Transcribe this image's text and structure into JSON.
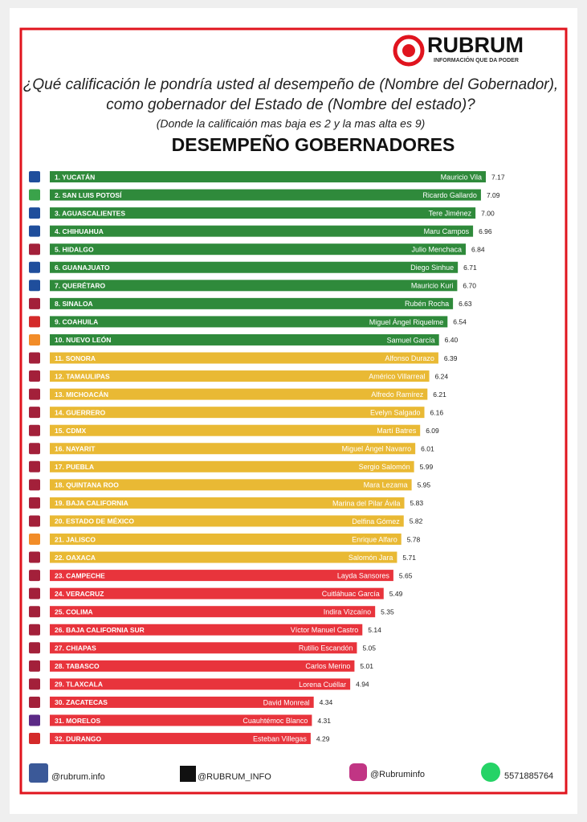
{
  "header": {
    "brand": "RUBRUM",
    "tagline": "INFORMACIÓN QUE DA PODER",
    "question_line1": "¿Qué calificación le pondría usted al desempeño de (Nombre del Gobernador),",
    "question_line2": "como gobernador del Estado de (Nombre del estado)?",
    "note": "(Donde la calificaión mas baja es 2 y la mas alta es 9)"
  },
  "chart_data": {
    "type": "bar",
    "orientation": "horizontal",
    "title": "DESEMPEÑO GOBERNADORES",
    "categories": [
      "1. YUCATÁN",
      "2. SAN LUIS POTOSÍ",
      "3. AGUASCALIENTES",
      "4. CHIHUAHUA",
      "5. HIDALGO",
      "6. GUANAJUATO",
      "7. QUERÉTARO",
      "8. SINALOA",
      "9. COAHUILA",
      "10. NUEVO LEÓN",
      "11. SONORA",
      "12. TAMAULIPAS",
      "13. MICHOACÁN",
      "14. GUERRERO",
      "15. CDMX",
      "16. NAYARIT",
      "17. PUEBLA",
      "18. QUINTANA ROO",
      "19. BAJA CALIFORNIA",
      "20. ESTADO DE MÉXICO",
      "21. JALISCO",
      "22. OAXACA",
      "23. CAMPECHE",
      "24. VERACRUZ",
      "25. COLIMA",
      "26. BAJA CALIFORNIA SUR",
      "27. CHIAPAS",
      "28. TABASCO",
      "29. TLAXCALA",
      "30. ZACATECAS",
      "31. MORELOS",
      "32. DURANGO"
    ],
    "governors": [
      "Mauricio Vila",
      "Ricardo Gallardo",
      "Tere Jiménez",
      "Maru Campos",
      "Julio Menchaca",
      "Diego Sinhue",
      "Mauricio Kuri",
      "Rubén Rocha",
      "Miguel Ángel Riquelme",
      "Samuel García",
      "Alfonso Durazo",
      "Américo Villarreal",
      "Alfredo Ramírez",
      "Evelyn Salgado",
      "Martí Batres",
      "Miguel Ángel Navarro",
      "Sergio Salomón",
      "Mara Lezama",
      "Marina del Pilar Ávila",
      "Delfina Gómez",
      "Enrique Alfaro",
      "Salomón Jara",
      "Layda Sansores",
      "Cuitláhuac García",
      "Indira Vizcaíno",
      "Víctor Manuel Castro",
      "Rutilio Escandón",
      "Carlos Merino",
      "Lorena Cuéllar",
      "David Monreal",
      "Cuauhtémoc Blanco",
      "Esteban Villegas"
    ],
    "values": [
      7.17,
      7.09,
      7.0,
      6.96,
      6.84,
      6.71,
      6.7,
      6.63,
      6.54,
      6.4,
      6.39,
      6.24,
      6.21,
      6.16,
      6.09,
      6.01,
      5.99,
      5.95,
      5.83,
      5.82,
      5.78,
      5.71,
      5.65,
      5.49,
      5.35,
      5.14,
      5.05,
      5.01,
      4.94,
      4.34,
      4.31,
      4.29
    ],
    "value_labels": [
      "7.17",
      "7.09",
      "7.00",
      "6.96",
      "6.84",
      "6.71",
      "6.70",
      "6.63",
      "6.54",
      "6.40",
      "6.39",
      "6.24",
      "6.21",
      "6.16",
      "6.09",
      "6.01",
      "5.99",
      "5.95",
      "5.83",
      "5.82",
      "5.78",
      "5.71",
      "5.65",
      "5.49",
      "5.35",
      "5.14",
      "5.05",
      "5.01",
      "4.94",
      "4.34",
      "4.31",
      "4.29"
    ],
    "colors": [
      "#2f8a3b",
      "#2f8a3b",
      "#2f8a3b",
      "#2f8a3b",
      "#2f8a3b",
      "#2f8a3b",
      "#2f8a3b",
      "#2f8a3b",
      "#2f8a3b",
      "#2f8a3b",
      "#e9b934",
      "#e9b934",
      "#e9b934",
      "#e9b934",
      "#e9b934",
      "#e9b934",
      "#e9b934",
      "#e9b934",
      "#e9b934",
      "#e9b934",
      "#e9b934",
      "#e9b934",
      "#e8343c",
      "#e8343c",
      "#e8343c",
      "#e8343c",
      "#e8343c",
      "#e8343c",
      "#e8343c",
      "#e8343c",
      "#e8343c",
      "#e8343c"
    ],
    "icon_colors": [
      "#1f4e9c",
      "#3aa34a",
      "#1f4e9c",
      "#1f4e9c",
      "#a3203a",
      "#1f4e9c",
      "#1f4e9c",
      "#a3203a",
      "#d42a2a",
      "#f28c28",
      "#a3203a",
      "#a3203a",
      "#a3203a",
      "#a3203a",
      "#a3203a",
      "#a3203a",
      "#a3203a",
      "#a3203a",
      "#a3203a",
      "#a3203a",
      "#f28c28",
      "#a3203a",
      "#a3203a",
      "#a3203a",
      "#a3203a",
      "#a3203a",
      "#a3203a",
      "#a3203a",
      "#a3203a",
      "#a3203a",
      "#5b2a86",
      "#d42a2a"
    ]
  },
  "footer": {
    "facebook": "@rubrum.info",
    "x": "@RUBRUM_INFO",
    "instagram": "@Rubruminfo",
    "whatsapp": "5571885764"
  }
}
